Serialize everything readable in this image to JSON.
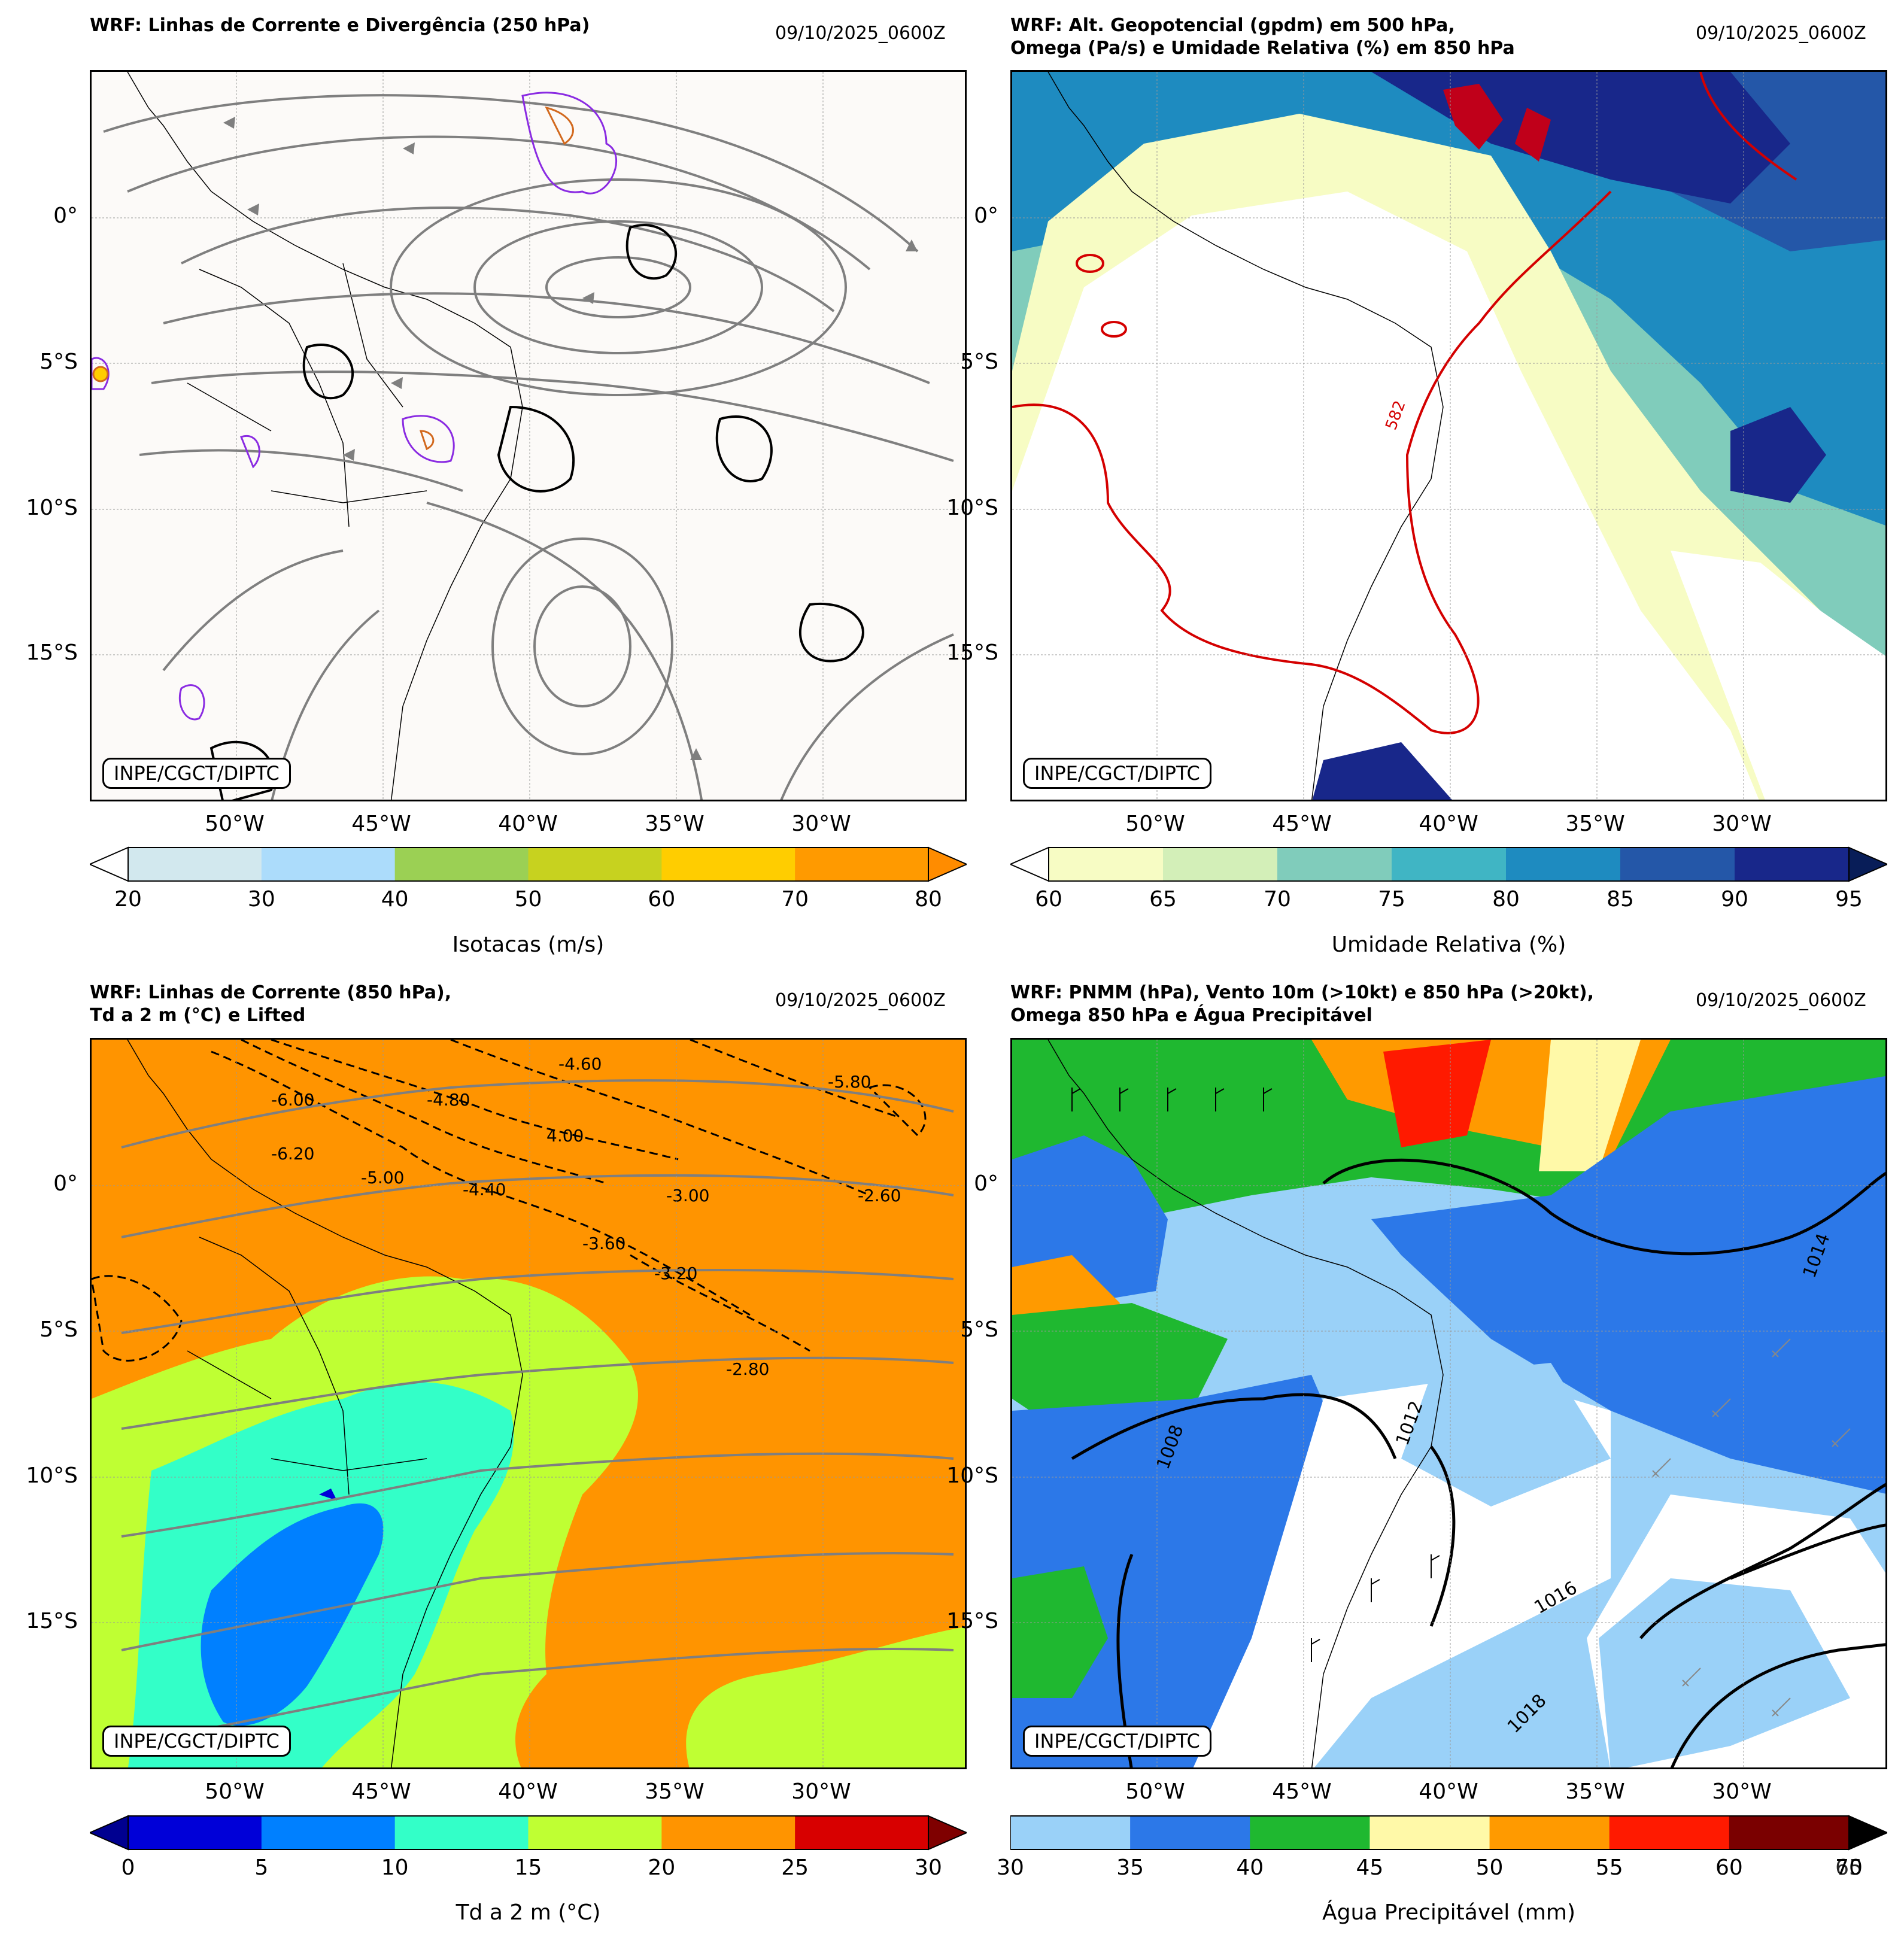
{
  "panels": [
    {
      "id": "p1",
      "title": "WRF: Linhas de Corrente e Divergência (250 hPa)",
      "date": "09/10/2025_0600Z",
      "credit": "INPE/CGCT/DIPTC",
      "background": "#fcfaf8",
      "colorbar": {
        "label": "Isotacas (m/s)",
        "ticks": [
          "20",
          "30",
          "40",
          "50",
          "60",
          "70",
          "80"
        ],
        "colors": [
          "#d2e8ee",
          "#acdcfb",
          "#9bd054",
          "#c7d21f",
          "#ffcd00",
          "#ff9a00"
        ],
        "extend_low": "#ffffff",
        "extend_high": "#ff8c00"
      }
    },
    {
      "id": "p2",
      "title": "WRF: Alt. Geopotencial (gpdm) em 500 hPa,\nOmega (Pa/s) e Umidade Relativa (%) em 850 hPa",
      "date": "09/10/2025_0600Z",
      "credit": "INPE/CGCT/DIPTC",
      "background": "#ffffff",
      "contour_label": "582",
      "colorbar": {
        "label": "Umidade Relativa (%)",
        "ticks": [
          "60",
          "65",
          "70",
          "75",
          "80",
          "85",
          "90",
          "95"
        ],
        "colors": [
          "#f7fcc4",
          "#d3efb8",
          "#80ccbb",
          "#40b5c4",
          "#1e8bc0",
          "#2457a8",
          "#18278a"
        ],
        "extend_low": "#ffffff",
        "extend_high": "#081d58"
      }
    },
    {
      "id": "p3",
      "title": "WRF: Linhas de Corrente (850 hPa),\nTd a 2 m (°C) e Lifted",
      "date": "09/10/2025_0600Z",
      "credit": "INPE/CGCT/DIPTC",
      "background": "#ff9400",
      "contour_labels": [
        "4.00",
        "-4.40",
        "-3.00",
        "-2.60",
        "-2.80",
        "-3.60",
        "-3.20",
        "-6.00",
        "-5.80",
        "-6.20",
        "-4.80",
        "-5.00",
        "-4.60"
      ],
      "colorbar": {
        "label": "Td a 2 m (°C)",
        "ticks": [
          "0",
          "5",
          "10",
          "15",
          "20",
          "25",
          "30"
        ],
        "colors": [
          "#0000d8",
          "#0080ff",
          "#33ffc8",
          "#bfff33",
          "#ff9400",
          "#d80000"
        ],
        "extend_low": "#000090",
        "extend_high": "#7f0000"
      }
    },
    {
      "id": "p4",
      "title": "WRF: PNMM (hPa), Vento 10m (>10kt) e 850 hPa (>20kt),\nOmega 850 hPa e Água Precipitável",
      "date": "09/10/2025_0600Z",
      "credit": "INPE/CGCT/DIPTC",
      "background": "#ffffff",
      "isobar_labels": [
        "1014",
        "1016",
        "1018",
        "1008",
        "1012"
      ],
      "colorbar": {
        "label": "Água Precipitável (mm)",
        "ticks": [
          "30",
          "35",
          "40",
          "45",
          "50",
          "55",
          "60",
          "70"
        ],
        "tick_overlap": "65",
        "colors": [
          "#9ad1f8",
          "#2c78e8",
          "#1fb830",
          "#fff9a8",
          "#ff9a00",
          "#ff1a00",
          "#7a0000"
        ],
        "extend_high": "#000000"
      }
    }
  ],
  "axes": {
    "lat_labels": [
      "0°",
      "5°S",
      "10°S",
      "15°S"
    ],
    "lon_labels": [
      "50°W",
      "45°W",
      "40°W",
      "35°W",
      "30°W"
    ]
  }
}
